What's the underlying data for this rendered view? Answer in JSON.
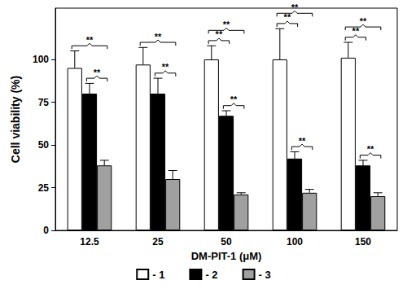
{
  "chart_data": {
    "type": "bar",
    "x_label": "DM-PIT-1 (μM)",
    "y_label": "Cell viability (%)",
    "categories": [
      "12.5",
      "25",
      "50",
      "100",
      "150"
    ],
    "series": [
      {
        "name": "- 1",
        "color": "#ffffff",
        "values": [
          95,
          97,
          100,
          100,
          101
        ],
        "errors": [
          10,
          10,
          8,
          18,
          9
        ]
      },
      {
        "name": "- 2",
        "color": "#000000",
        "values": [
          80,
          80,
          67,
          42,
          38
        ],
        "errors": [
          6,
          9,
          3,
          4,
          3
        ]
      },
      {
        "name": "- 3",
        "color": "#a0a0a0",
        "values": [
          38,
          30,
          21,
          22,
          20
        ],
        "errors": [
          3,
          5,
          1,
          2,
          2
        ]
      }
    ],
    "ylim": [
      0,
      130
    ],
    "yticks": [
      0,
      25,
      50,
      75,
      100
    ],
    "grid": false,
    "legend": "bottom",
    "annotations": [
      {
        "category": "12.5",
        "from": "- 1",
        "to": "- 3",
        "text": "**"
      },
      {
        "category": "12.5",
        "from": "- 2",
        "to": "- 3",
        "text": "**"
      },
      {
        "category": "25",
        "from": "- 1",
        "to": "- 3",
        "text": "**"
      },
      {
        "category": "25",
        "from": "- 2",
        "to": "- 3",
        "text": "**"
      },
      {
        "category": "50",
        "from": "- 1",
        "to": "- 2",
        "text": "**"
      },
      {
        "category": "50",
        "from": "- 1",
        "to": "- 3",
        "text": "**"
      },
      {
        "category": "50",
        "from": "- 2",
        "to": "- 3",
        "text": "**"
      },
      {
        "category": "100",
        "from": "- 1",
        "to": "- 2",
        "text": "**"
      },
      {
        "category": "100",
        "from": "- 1",
        "to": "- 3",
        "text": "**"
      },
      {
        "category": "100",
        "from": "- 2",
        "to": "- 3",
        "text": "**"
      },
      {
        "category": "150",
        "from": "- 1",
        "to": "- 2",
        "text": "**"
      },
      {
        "category": "150",
        "from": "- 1",
        "to": "- 3",
        "text": "**"
      },
      {
        "category": "150",
        "from": "- 2",
        "to": "- 3",
        "text": "**"
      }
    ]
  }
}
